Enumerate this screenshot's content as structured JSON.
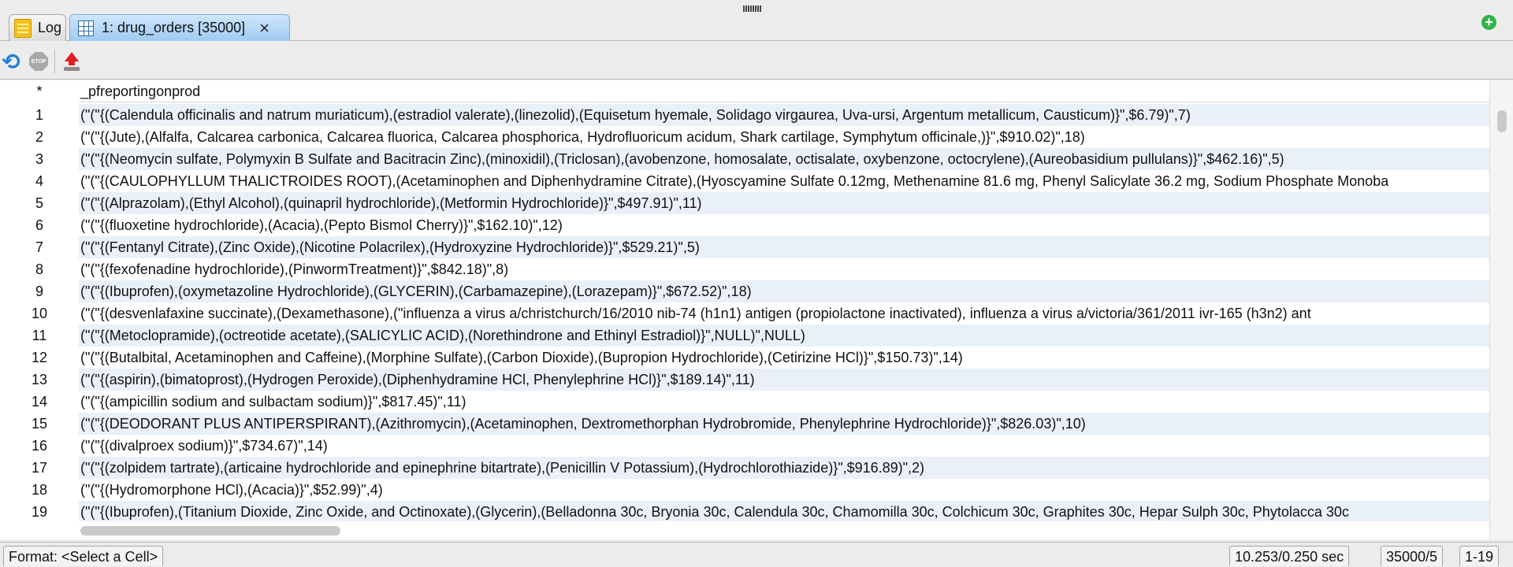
{
  "tabs": [
    {
      "label": "Log"
    },
    {
      "label": "1: drug_orders [35000]"
    }
  ],
  "toolbar": {
    "refresh_icon": "refresh-icon",
    "stop_label": "STOP",
    "export_icon": "export-icon"
  },
  "grid": {
    "header_corner": "*",
    "column": "_pfreportingonprod",
    "rows": [
      {
        "n": "1",
        "v": "(\"(\"{(Calendula officinalis and natrum muriaticum),(estradiol valerate),(linezolid),(Equisetum hyemale, Solidago virgaurea, Uva-ursi, Argentum metallicum, Causticum)}\",$6.79)\",7)"
      },
      {
        "n": "2",
        "v": "(\"(\"{(Jute),(Alfalfa, Calcarea carbonica, Calcarea fluorica, Calcarea phosphorica, Hydrofluoricum acidum, Shark cartilage, Symphytum officinale,)}\",$910.02)\",18)"
      },
      {
        "n": "3",
        "v": "(\"(\"{(Neomycin sulfate, Polymyxin B Sulfate and Bacitracin Zinc),(minoxidil),(Triclosan),(avobenzone, homosalate, octisalate, oxybenzone, octocrylene),(Aureobasidium pullulans)}\",$462.16)\",5)"
      },
      {
        "n": "4",
        "v": "(\"(\"{(CAULOPHYLLUM THALICTROIDES ROOT),(Acetaminophen and Diphenhydramine Citrate),(Hyoscyamine Sulfate 0.12mg, Methenamine 81.6 mg, Phenyl Salicylate 36.2 mg, Sodium Phosphate Monoba"
      },
      {
        "n": "5",
        "v": "(\"(\"{(Alprazolam),(Ethyl Alcohol),(quinapril hydrochloride),(Metformin Hydrochloride)}\",$497.91)\",11)"
      },
      {
        "n": "6",
        "v": "(\"(\"{(fluoxetine hydrochloride),(Acacia),(Pepto Bismol Cherry)}\",$162.10)\",12)"
      },
      {
        "n": "7",
        "v": "(\"(\"{(Fentanyl Citrate),(Zinc Oxide),(Nicotine Polacrilex),(Hydroxyzine Hydrochloride)}\",$529.21)\",5)"
      },
      {
        "n": "8",
        "v": "(\"(\"{(fexofenadine hydrochloride),(PinwormTreatment)}\",$842.18)\",8)"
      },
      {
        "n": "9",
        "v": "(\"(\"{(Ibuprofen),(oxymetazoline Hydrochloride),(GLYCERIN),(Carbamazepine),(Lorazepam)}\",$672.52)\",18)"
      },
      {
        "n": "10",
        "v": "(\"(\"{(desvenlafaxine succinate),(Dexamethasone),(\"influenza a virus a/christchurch/16/2010 nib-74 (h1n1) antigen (propiolactone inactivated), influenza a virus a/victoria/361/2011 ivr-165 (h3n2) ant"
      },
      {
        "n": "11",
        "v": "(\"(\"{(Metoclopramide),(octreotide acetate),(SALICYLIC ACID),(Norethindrone and Ethinyl Estradiol)}\",NULL)\",NULL)"
      },
      {
        "n": "12",
        "v": "(\"(\"{(Butalbital, Acetaminophen and Caffeine),(Morphine Sulfate),(Carbon Dioxide),(Bupropion Hydrochloride),(Cetirizine HCl)}\",$150.73)\",14)"
      },
      {
        "n": "13",
        "v": "(\"(\"{(aspirin),(bimatoprost),(Hydrogen Peroxide),(Diphenhydramine HCl, Phenylephrine HCl)}\",$189.14)\",11)"
      },
      {
        "n": "14",
        "v": "(\"(\"{(ampicillin sodium and sulbactam sodium)}\",$817.45)\",11)"
      },
      {
        "n": "15",
        "v": "(\"(\"{(DEODORANT PLUS ANTIPERSPIRANT),(Azithromycin),(Acetaminophen, Dextromethorphan Hydrobromide, Phenylephrine Hydrochloride)}\",$826.03)\",10)"
      },
      {
        "n": "16",
        "v": "(\"(\"{(divalproex sodium)}\",$734.67)\",14)"
      },
      {
        "n": "17",
        "v": "(\"(\"{(zolpidem tartrate),(articaine hydrochloride and epinephrine bitartrate),(Penicillin V Potassium),(Hydrochlorothiazide)}\",$916.89)\",2)"
      },
      {
        "n": "18",
        "v": "(\"(\"{(Hydromorphone HCl),(Acacia)}\",$52.99)\",4)"
      },
      {
        "n": "19",
        "v": "(\"(\"{(Ibuprofen),(Titanium Dioxide, Zinc Oxide, and Octinoxate),(Glycerin),(Belladonna 30c, Bryonia 30c, Calendula 30c, Chamomilla 30c, Colchicum 30c, Graphites 30c, Hepar Sulph 30c, Phytolacca 30c"
      }
    ]
  },
  "status": {
    "format": "Format: <Select a Cell>",
    "timing": "10.253/0.250 sec",
    "dimensions": "35000/5",
    "range": "1-19"
  }
}
